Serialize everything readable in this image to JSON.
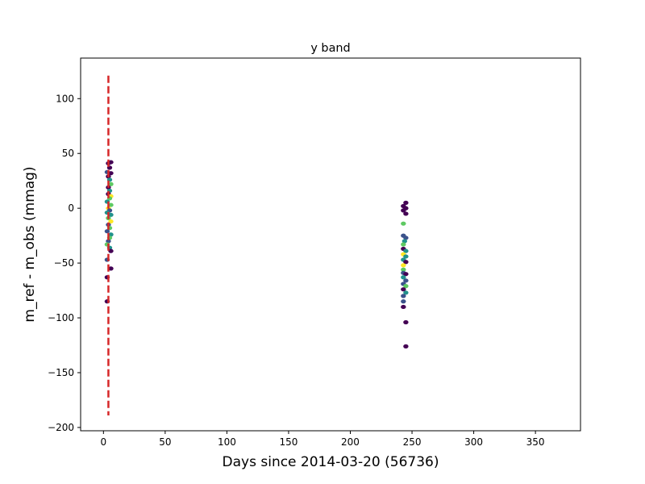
{
  "chart_data": {
    "type": "scatter",
    "title": "y band",
    "xlabel": "Days since 2014-03-20 (56736)",
    "ylabel": "m_ref - m_obs (mmag)",
    "xlim": [
      -18.5,
      386.5
    ],
    "ylim": [
      -203,
      137
    ],
    "xticks": [
      0,
      50,
      100,
      150,
      200,
      250,
      300,
      350
    ],
    "yticks": [
      -200,
      -150,
      -100,
      -50,
      0,
      50,
      100
    ],
    "colors": {
      "reference_line": "#d62728",
      "palette": [
        "#440154",
        "#3b528b",
        "#21918c",
        "#5ec962",
        "#fde725"
      ]
    },
    "reference_line": {
      "x": 4,
      "y_range": [
        -189,
        121
      ],
      "style": "dashed"
    },
    "points": [
      {
        "x": 4,
        "y": 41,
        "c": 0
      },
      {
        "x": 6,
        "y": 42,
        "c": 0
      },
      {
        "x": 5,
        "y": 37,
        "c": 0
      },
      {
        "x": 3,
        "y": 33,
        "c": 1
      },
      {
        "x": 6,
        "y": 32,
        "c": 0
      },
      {
        "x": 4,
        "y": 29,
        "c": 0
      },
      {
        "x": 5,
        "y": 26,
        "c": 2
      },
      {
        "x": 6,
        "y": 22,
        "c": 3
      },
      {
        "x": 4,
        "y": 19,
        "c": 0
      },
      {
        "x": 5,
        "y": 16,
        "c": 2
      },
      {
        "x": 4,
        "y": 13,
        "c": 0
      },
      {
        "x": 6,
        "y": 11,
        "c": 4
      },
      {
        "x": 5,
        "y": 9,
        "c": 3
      },
      {
        "x": 3,
        "y": 6,
        "c": 2
      },
      {
        "x": 6,
        "y": 3,
        "c": 3
      },
      {
        "x": 4,
        "y": 0,
        "c": 4
      },
      {
        "x": 5,
        "y": -2,
        "c": 1
      },
      {
        "x": 3,
        "y": -4,
        "c": 2
      },
      {
        "x": 6,
        "y": -6,
        "c": 2
      },
      {
        "x": 4,
        "y": -9,
        "c": 3
      },
      {
        "x": 6,
        "y": -12,
        "c": 4
      },
      {
        "x": 4,
        "y": -15,
        "c": 1
      },
      {
        "x": 5,
        "y": -18,
        "c": 3
      },
      {
        "x": 3,
        "y": -21,
        "c": 1
      },
      {
        "x": 6,
        "y": -24,
        "c": 2
      },
      {
        "x": 5,
        "y": -27,
        "c": 3
      },
      {
        "x": 4,
        "y": -30,
        "c": 1
      },
      {
        "x": 3,
        "y": -33,
        "c": 3
      },
      {
        "x": 5,
        "y": -36,
        "c": 2
      },
      {
        "x": 6,
        "y": -39,
        "c": 0
      },
      {
        "x": 3,
        "y": -47,
        "c": 1
      },
      {
        "x": 6,
        "y": -55,
        "c": 0
      },
      {
        "x": 3,
        "y": -63,
        "c": 0
      },
      {
        "x": 3,
        "y": -85,
        "c": 0
      },
      {
        "x": 245,
        "y": 5,
        "c": 0
      },
      {
        "x": 243,
        "y": 2,
        "c": 0
      },
      {
        "x": 245,
        "y": 0,
        "c": 0
      },
      {
        "x": 243,
        "y": -2,
        "c": 0
      },
      {
        "x": 245,
        "y": -5,
        "c": 0
      },
      {
        "x": 243,
        "y": -14,
        "c": 3
      },
      {
        "x": 243,
        "y": -25,
        "c": 1
      },
      {
        "x": 245,
        "y": -27,
        "c": 1
      },
      {
        "x": 244,
        "y": -30,
        "c": 2
      },
      {
        "x": 243,
        "y": -33,
        "c": 3
      },
      {
        "x": 243,
        "y": -37,
        "c": 0
      },
      {
        "x": 245,
        "y": -39,
        "c": 2
      },
      {
        "x": 243,
        "y": -42,
        "c": 4
      },
      {
        "x": 245,
        "y": -44,
        "c": 2
      },
      {
        "x": 243,
        "y": -47,
        "c": 2
      },
      {
        "x": 245,
        "y": -49,
        "c": 0
      },
      {
        "x": 243,
        "y": -52,
        "c": 4
      },
      {
        "x": 243,
        "y": -56,
        "c": 3
      },
      {
        "x": 243,
        "y": -59,
        "c": 1
      },
      {
        "x": 245,
        "y": -60,
        "c": 0
      },
      {
        "x": 243,
        "y": -63,
        "c": 2
      },
      {
        "x": 245,
        "y": -66,
        "c": 1
      },
      {
        "x": 243,
        "y": -69,
        "c": 1
      },
      {
        "x": 245,
        "y": -71,
        "c": 3
      },
      {
        "x": 243,
        "y": -74,
        "c": 0
      },
      {
        "x": 245,
        "y": -77,
        "c": 2
      },
      {
        "x": 243,
        "y": -80,
        "c": 1
      },
      {
        "x": 243,
        "y": -85,
        "c": 1
      },
      {
        "x": 243,
        "y": -90,
        "c": 0
      },
      {
        "x": 245,
        "y": -104,
        "c": 0
      },
      {
        "x": 245,
        "y": -126,
        "c": 0
      }
    ]
  }
}
